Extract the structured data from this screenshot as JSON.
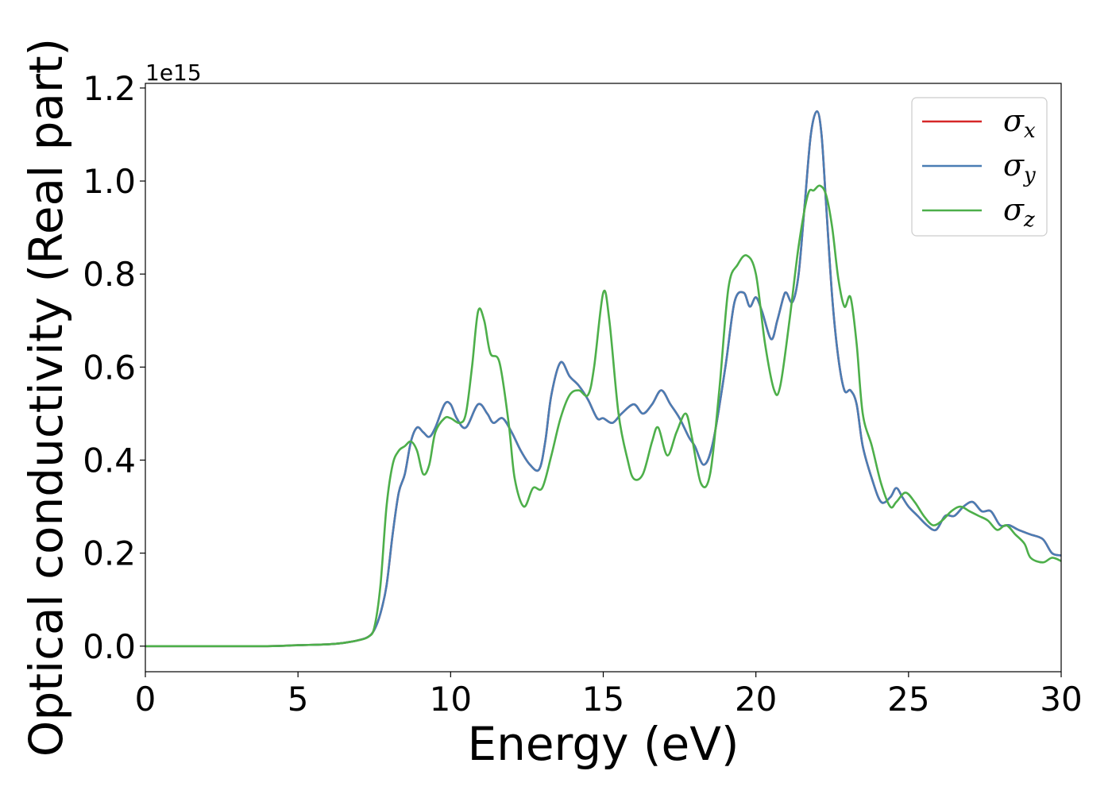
{
  "chart_data": {
    "type": "line",
    "title": "",
    "xlabel": "Energy (eV)",
    "ylabel": "Optical conductivity (Real part)",
    "y_offset_label": "1e15",
    "y_scale": 1000000000000000.0,
    "xlim": [
      0,
      30
    ],
    "ylim": [
      -0.055,
      1.21
    ],
    "x_ticks": [
      0,
      5,
      10,
      15,
      20,
      25,
      30
    ],
    "y_ticks": [
      0.0,
      0.2,
      0.4,
      0.6,
      0.8,
      1.0,
      1.2
    ],
    "x_tick_labels": [
      "0",
      "5",
      "10",
      "15",
      "20",
      "25",
      "30"
    ],
    "y_tick_labels": [
      "0.0",
      "0.2",
      "0.4",
      "0.6",
      "0.8",
      "1.0",
      "1.2"
    ],
    "grid": false,
    "legend_position": "top-right",
    "series": [
      {
        "name": "σx",
        "symbol": "σ",
        "subscript": "x",
        "color": "#d62728",
        "x": [
          0,
          2,
          4,
          5,
          6,
          6.5,
          7,
          7.3,
          7.5,
          7.7,
          7.9,
          8.1,
          8.3,
          8.5,
          8.7,
          8.9,
          9.1,
          9.3,
          9.5,
          9.8,
          10.0,
          10.2,
          10.5,
          10.9,
          11.2,
          11.4,
          11.7,
          12.0,
          12.3,
          12.6,
          12.9,
          13.1,
          13.3,
          13.6,
          13.9,
          14.2,
          14.5,
          14.8,
          15.0,
          15.3,
          15.6,
          16.0,
          16.3,
          16.6,
          16.9,
          17.2,
          17.5,
          17.8,
          18.0,
          18.3,
          18.6,
          19.0,
          19.3,
          19.6,
          19.8,
          20.0,
          20.2,
          20.5,
          20.7,
          20.9,
          21.0,
          21.2,
          21.4,
          21.6,
          21.8,
          22.0,
          22.15,
          22.3,
          22.5,
          22.7,
          22.9,
          23.1,
          23.3,
          23.5,
          23.8,
          24.1,
          24.4,
          24.6,
          24.8,
          25.0,
          25.3,
          25.6,
          25.9,
          26.2,
          26.5,
          26.8,
          27.1,
          27.4,
          27.7,
          28.0,
          28.3,
          28.6,
          29.0,
          29.4,
          29.7,
          30.0
        ],
        "y": [
          0.0,
          0.0,
          0.0,
          0.002,
          0.004,
          0.007,
          0.013,
          0.02,
          0.035,
          0.07,
          0.13,
          0.24,
          0.33,
          0.37,
          0.44,
          0.47,
          0.46,
          0.45,
          0.47,
          0.52,
          0.52,
          0.49,
          0.47,
          0.52,
          0.5,
          0.48,
          0.49,
          0.46,
          0.42,
          0.39,
          0.38,
          0.44,
          0.54,
          0.61,
          0.58,
          0.56,
          0.53,
          0.49,
          0.49,
          0.48,
          0.5,
          0.52,
          0.5,
          0.52,
          0.55,
          0.52,
          0.49,
          0.45,
          0.43,
          0.39,
          0.44,
          0.6,
          0.74,
          0.76,
          0.73,
          0.75,
          0.72,
          0.66,
          0.7,
          0.75,
          0.76,
          0.74,
          0.8,
          0.95,
          1.1,
          1.15,
          1.1,
          0.95,
          0.75,
          0.62,
          0.55,
          0.55,
          0.52,
          0.43,
          0.36,
          0.31,
          0.32,
          0.34,
          0.32,
          0.3,
          0.28,
          0.26,
          0.25,
          0.28,
          0.28,
          0.3,
          0.31,
          0.29,
          0.29,
          0.26,
          0.26,
          0.25,
          0.24,
          0.23,
          0.2,
          0.195
        ]
      },
      {
        "name": "σy",
        "symbol": "σ",
        "subscript": "y",
        "color": "#4a7db4",
        "x": [
          0,
          2,
          4,
          5,
          6,
          6.5,
          7,
          7.3,
          7.5,
          7.7,
          7.9,
          8.1,
          8.3,
          8.5,
          8.7,
          8.9,
          9.1,
          9.3,
          9.5,
          9.8,
          10.0,
          10.2,
          10.5,
          10.9,
          11.2,
          11.4,
          11.7,
          12.0,
          12.3,
          12.6,
          12.9,
          13.1,
          13.3,
          13.6,
          13.9,
          14.2,
          14.5,
          14.8,
          15.0,
          15.3,
          15.6,
          16.0,
          16.3,
          16.6,
          16.9,
          17.2,
          17.5,
          17.8,
          18.0,
          18.3,
          18.6,
          19.0,
          19.3,
          19.6,
          19.8,
          20.0,
          20.2,
          20.5,
          20.7,
          20.9,
          21.0,
          21.2,
          21.4,
          21.6,
          21.8,
          22.0,
          22.15,
          22.3,
          22.5,
          22.7,
          22.9,
          23.1,
          23.3,
          23.5,
          23.8,
          24.1,
          24.4,
          24.6,
          24.8,
          25.0,
          25.3,
          25.6,
          25.9,
          26.2,
          26.5,
          26.8,
          27.1,
          27.4,
          27.7,
          28.0,
          28.3,
          28.6,
          29.0,
          29.4,
          29.7,
          30.0
        ],
        "y": [
          0.0,
          0.0,
          0.0,
          0.002,
          0.004,
          0.007,
          0.013,
          0.02,
          0.035,
          0.07,
          0.13,
          0.24,
          0.33,
          0.37,
          0.44,
          0.47,
          0.46,
          0.45,
          0.47,
          0.52,
          0.52,
          0.49,
          0.47,
          0.52,
          0.5,
          0.48,
          0.49,
          0.46,
          0.42,
          0.39,
          0.38,
          0.44,
          0.54,
          0.61,
          0.58,
          0.56,
          0.53,
          0.49,
          0.49,
          0.48,
          0.5,
          0.52,
          0.5,
          0.52,
          0.55,
          0.52,
          0.49,
          0.45,
          0.43,
          0.39,
          0.44,
          0.6,
          0.74,
          0.76,
          0.73,
          0.75,
          0.72,
          0.66,
          0.7,
          0.75,
          0.76,
          0.74,
          0.8,
          0.95,
          1.1,
          1.15,
          1.1,
          0.95,
          0.75,
          0.62,
          0.55,
          0.55,
          0.52,
          0.43,
          0.36,
          0.31,
          0.32,
          0.34,
          0.32,
          0.3,
          0.28,
          0.26,
          0.25,
          0.28,
          0.28,
          0.3,
          0.31,
          0.29,
          0.29,
          0.26,
          0.26,
          0.25,
          0.24,
          0.23,
          0.2,
          0.195
        ]
      },
      {
        "name": "σz",
        "symbol": "σ",
        "subscript": "z",
        "color": "#4daf4a",
        "x": [
          0,
          2,
          4,
          5,
          6,
          6.5,
          7,
          7.3,
          7.5,
          7.7,
          7.9,
          8.1,
          8.3,
          8.5,
          8.7,
          8.9,
          9.1,
          9.3,
          9.5,
          9.8,
          10.0,
          10.3,
          10.5,
          10.7,
          10.9,
          11.1,
          11.3,
          11.6,
          11.9,
          12.1,
          12.4,
          12.7,
          13.0,
          13.3,
          13.6,
          13.9,
          14.2,
          14.5,
          14.7,
          15.0,
          15.2,
          15.5,
          15.8,
          16.0,
          16.3,
          16.6,
          16.8,
          17.1,
          17.4,
          17.7,
          17.9,
          18.2,
          18.5,
          18.8,
          19.1,
          19.4,
          19.7,
          20.0,
          20.3,
          20.6,
          20.8,
          21.1,
          21.4,
          21.7,
          21.9,
          22.1,
          22.3,
          22.5,
          22.7,
          22.9,
          23.1,
          23.3,
          23.5,
          23.8,
          24.1,
          24.4,
          24.6,
          24.9,
          25.2,
          25.5,
          25.8,
          26.1,
          26.4,
          26.7,
          27.0,
          27.3,
          27.6,
          27.9,
          28.2,
          28.5,
          28.8,
          29.0,
          29.4,
          29.7,
          30.0
        ],
        "y": [
          0.0,
          0.0,
          0.0,
          0.002,
          0.004,
          0.007,
          0.013,
          0.02,
          0.04,
          0.13,
          0.3,
          0.39,
          0.42,
          0.43,
          0.44,
          0.42,
          0.37,
          0.39,
          0.46,
          0.49,
          0.49,
          0.48,
          0.5,
          0.6,
          0.72,
          0.7,
          0.63,
          0.61,
          0.48,
          0.36,
          0.3,
          0.34,
          0.34,
          0.41,
          0.49,
          0.54,
          0.55,
          0.54,
          0.6,
          0.76,
          0.7,
          0.5,
          0.4,
          0.36,
          0.37,
          0.44,
          0.47,
          0.41,
          0.46,
          0.5,
          0.45,
          0.35,
          0.37,
          0.55,
          0.77,
          0.82,
          0.84,
          0.8,
          0.65,
          0.55,
          0.56,
          0.7,
          0.86,
          0.97,
          0.98,
          0.99,
          0.97,
          0.9,
          0.79,
          0.73,
          0.75,
          0.65,
          0.5,
          0.43,
          0.35,
          0.3,
          0.31,
          0.33,
          0.31,
          0.28,
          0.26,
          0.27,
          0.29,
          0.3,
          0.29,
          0.28,
          0.27,
          0.25,
          0.26,
          0.24,
          0.22,
          0.19,
          0.18,
          0.19,
          0.183
        ]
      }
    ]
  }
}
